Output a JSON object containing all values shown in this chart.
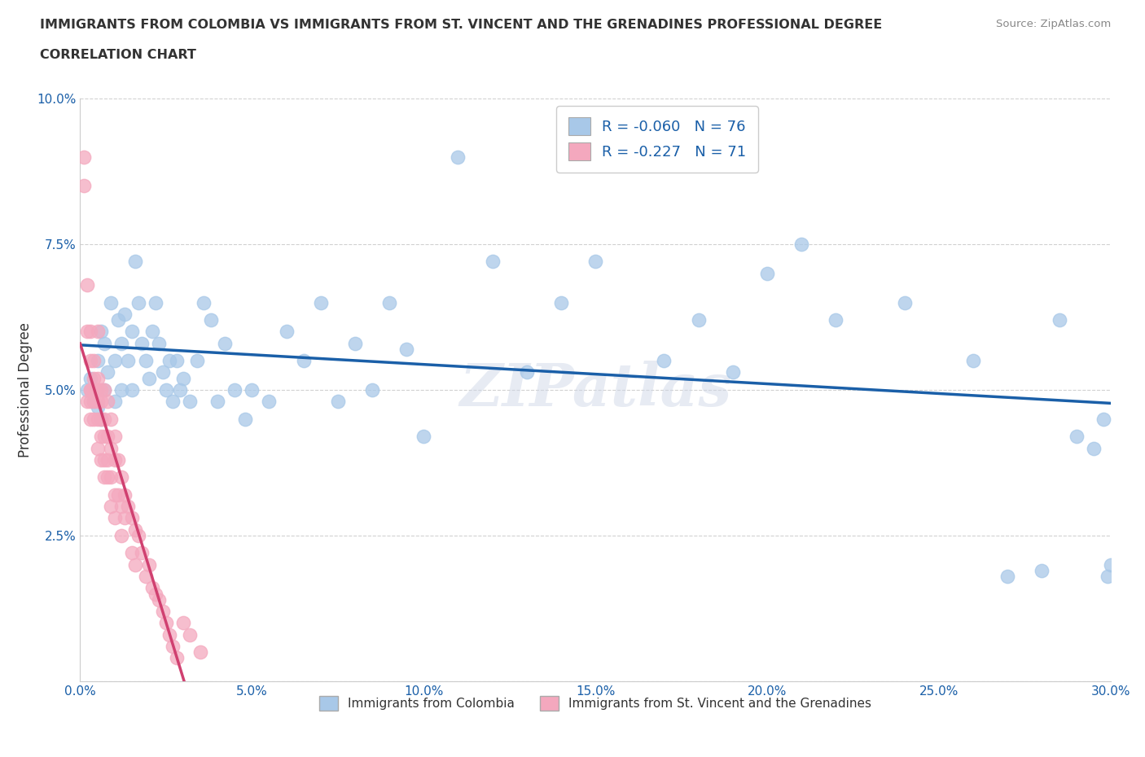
{
  "title_line1": "IMMIGRANTS FROM COLOMBIA VS IMMIGRANTS FROM ST. VINCENT AND THE GRENADINES PROFESSIONAL DEGREE",
  "title_line2": "CORRELATION CHART",
  "source_text": "Source: ZipAtlas.com",
  "watermark": "ZIPatlas",
  "ylabel": "Professional Degree",
  "xmin": 0.0,
  "xmax": 0.3,
  "ymin": 0.0,
  "ymax": 0.1,
  "xticks": [
    0.0,
    0.05,
    0.1,
    0.15,
    0.2,
    0.25,
    0.3
  ],
  "yticks": [
    0.0,
    0.025,
    0.05,
    0.075,
    0.1
  ],
  "xtick_labels": [
    "0.0%",
    "5.0%",
    "10.0%",
    "15.0%",
    "20.0%",
    "25.0%",
    "30.0%"
  ],
  "ytick_labels": [
    "",
    "2.5%",
    "5.0%",
    "7.5%",
    "10.0%"
  ],
  "r_colombia": -0.06,
  "n_colombia": 76,
  "r_stvincent": -0.227,
  "n_stvincent": 71,
  "color_colombia": "#a8c8e8",
  "color_stvincent": "#f4a8be",
  "trendline_colombia": "#1a5fa8",
  "trendline_stvincent": "#d04070",
  "legend_label_colombia": "Immigrants from Colombia",
  "legend_label_stvincent": "Immigrants from St. Vincent and the Grenadines",
  "colombia_x": [
    0.002,
    0.003,
    0.004,
    0.005,
    0.005,
    0.006,
    0.006,
    0.007,
    0.007,
    0.008,
    0.009,
    0.01,
    0.01,
    0.011,
    0.012,
    0.012,
    0.013,
    0.014,
    0.015,
    0.015,
    0.016,
    0.017,
    0.018,
    0.019,
    0.02,
    0.021,
    0.022,
    0.023,
    0.024,
    0.025,
    0.026,
    0.027,
    0.028,
    0.029,
    0.03,
    0.032,
    0.034,
    0.036,
    0.038,
    0.04,
    0.042,
    0.045,
    0.048,
    0.05,
    0.055,
    0.06,
    0.065,
    0.07,
    0.075,
    0.08,
    0.085,
    0.09,
    0.095,
    0.1,
    0.11,
    0.12,
    0.13,
    0.14,
    0.15,
    0.16,
    0.17,
    0.18,
    0.19,
    0.2,
    0.21,
    0.22,
    0.24,
    0.26,
    0.27,
    0.28,
    0.285,
    0.29,
    0.295,
    0.298,
    0.299,
    0.3
  ],
  "colombia_y": [
    0.05,
    0.052,
    0.048,
    0.055,
    0.047,
    0.06,
    0.045,
    0.058,
    0.05,
    0.053,
    0.065,
    0.048,
    0.055,
    0.062,
    0.05,
    0.058,
    0.063,
    0.055,
    0.06,
    0.05,
    0.072,
    0.065,
    0.058,
    0.055,
    0.052,
    0.06,
    0.065,
    0.058,
    0.053,
    0.05,
    0.055,
    0.048,
    0.055,
    0.05,
    0.052,
    0.048,
    0.055,
    0.065,
    0.062,
    0.048,
    0.058,
    0.05,
    0.045,
    0.05,
    0.048,
    0.06,
    0.055,
    0.065,
    0.048,
    0.058,
    0.05,
    0.065,
    0.057,
    0.042,
    0.09,
    0.072,
    0.053,
    0.065,
    0.072,
    0.096,
    0.055,
    0.062,
    0.053,
    0.07,
    0.075,
    0.062,
    0.065,
    0.055,
    0.018,
    0.019,
    0.062,
    0.042,
    0.04,
    0.045,
    0.018,
    0.02
  ],
  "stvincent_x": [
    0.001,
    0.001,
    0.002,
    0.002,
    0.002,
    0.003,
    0.003,
    0.003,
    0.003,
    0.003,
    0.003,
    0.004,
    0.004,
    0.004,
    0.004,
    0.004,
    0.005,
    0.005,
    0.005,
    0.005,
    0.005,
    0.005,
    0.006,
    0.006,
    0.006,
    0.006,
    0.006,
    0.007,
    0.007,
    0.007,
    0.007,
    0.007,
    0.008,
    0.008,
    0.008,
    0.008,
    0.009,
    0.009,
    0.009,
    0.009,
    0.01,
    0.01,
    0.01,
    0.01,
    0.011,
    0.011,
    0.012,
    0.012,
    0.012,
    0.013,
    0.013,
    0.014,
    0.015,
    0.015,
    0.016,
    0.016,
    0.017,
    0.018,
    0.019,
    0.02,
    0.021,
    0.022,
    0.023,
    0.024,
    0.025,
    0.026,
    0.027,
    0.028,
    0.03,
    0.032,
    0.035
  ],
  "stvincent_y": [
    0.085,
    0.09,
    0.048,
    0.06,
    0.068,
    0.05,
    0.048,
    0.055,
    0.06,
    0.05,
    0.045,
    0.052,
    0.048,
    0.055,
    0.045,
    0.05,
    0.06,
    0.05,
    0.048,
    0.052,
    0.045,
    0.04,
    0.05,
    0.048,
    0.042,
    0.045,
    0.038,
    0.05,
    0.045,
    0.042,
    0.038,
    0.035,
    0.048,
    0.042,
    0.038,
    0.035,
    0.045,
    0.04,
    0.035,
    0.03,
    0.042,
    0.038,
    0.032,
    0.028,
    0.038,
    0.032,
    0.035,
    0.03,
    0.025,
    0.032,
    0.028,
    0.03,
    0.028,
    0.022,
    0.026,
    0.02,
    0.025,
    0.022,
    0.018,
    0.02,
    0.016,
    0.015,
    0.014,
    0.012,
    0.01,
    0.008,
    0.006,
    0.004,
    0.01,
    0.008,
    0.005
  ]
}
